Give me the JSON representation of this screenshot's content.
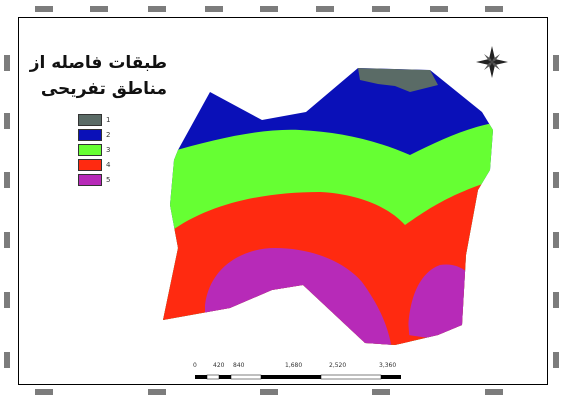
{
  "legend": {
    "title_line1": "طبقات فاصله از",
    "title_line2": "مناطق تفریحی",
    "items": [
      {
        "label": "1",
        "color": "#5a6b66"
      },
      {
        "label": "2",
        "color": "#0a10b8"
      },
      {
        "label": "3",
        "color": "#66ff33"
      },
      {
        "label": "4",
        "color": "#ff2a10"
      },
      {
        "label": "5",
        "color": "#b72ab8"
      }
    ]
  },
  "scale_bar": {
    "labels": [
      "0",
      "420",
      "840",
      "1,680",
      "2,520",
      "3,360"
    ]
  },
  "colors": {
    "class1": "#5a6b66",
    "class2": "#0a10b8",
    "class3": "#66ff33",
    "class4": "#ff2a10",
    "class5": "#b72ab8"
  },
  "icons": {
    "north_arrow": "compass-star-icon"
  }
}
